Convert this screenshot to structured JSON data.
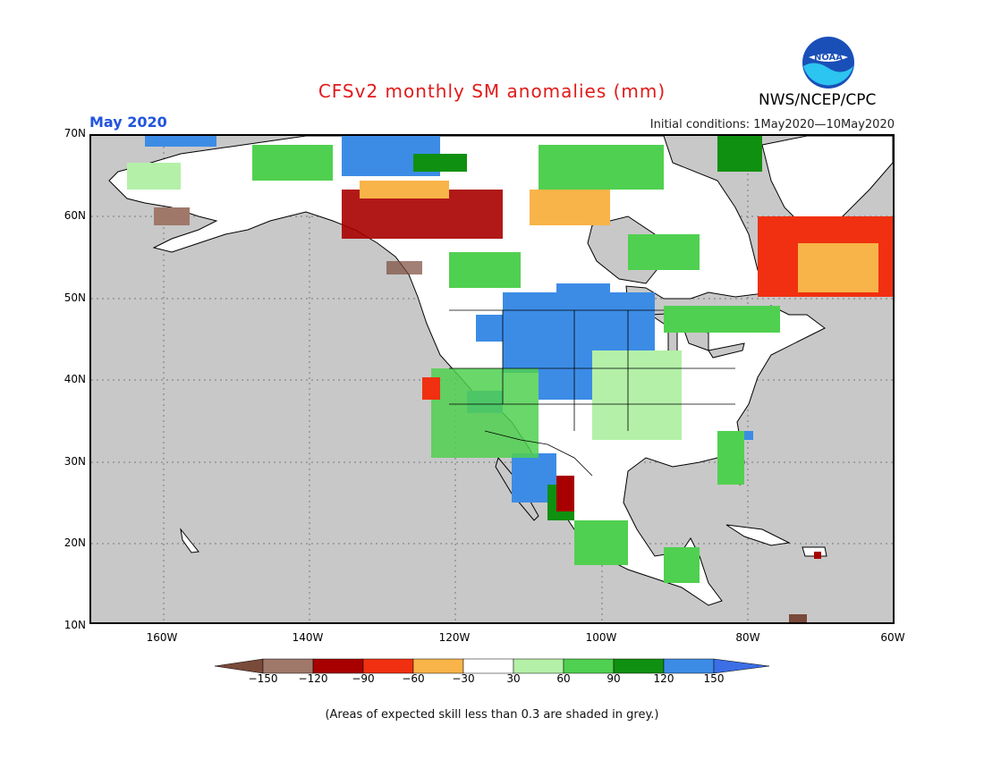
{
  "title": "CFSv2 monthly SM anomalies (mm)",
  "month_label": "May 2020",
  "initial_conditions": "Initial conditions: 1May2020—10May2020",
  "agency": "NWS/NCEP/CPC",
  "logo": {
    "text": "NOAA",
    "icon": "noaa-logo-icon"
  },
  "map": {
    "lat_labels": [
      "70N",
      "60N",
      "50N",
      "40N",
      "30N",
      "20N",
      "10N"
    ],
    "lon_labels": [
      "160W",
      "140W",
      "120W",
      "100W",
      "80W",
      "60W"
    ],
    "grid": "dotted",
    "background_color": "#c8c8c8"
  },
  "legend": {
    "ticks": [
      "−150",
      "−120",
      "−90",
      "−60",
      "−30",
      "30",
      "60",
      "90",
      "120",
      "150"
    ],
    "colors": [
      "#7a4a3a",
      "#a0786a",
      "#a80000",
      "#f03010",
      "#f8b448",
      "#ffffff",
      "#b4f0a8",
      "#50d050",
      "#109010",
      "#3c8ce6",
      "#3c6ee6"
    ]
  },
  "footnote": "(Areas of expected skill less than 0.3 are shaded in grey.)"
}
